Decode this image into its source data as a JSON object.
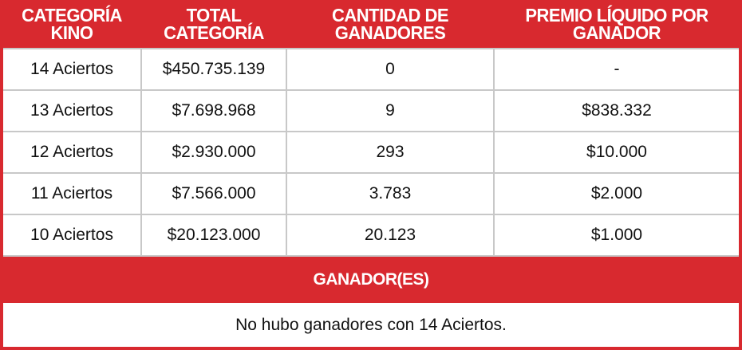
{
  "colors": {
    "accent": "#d8292f",
    "cell_background": "#ffffff",
    "grid_line": "#c8c8c8",
    "text": "#111111",
    "header_text": "#ffffff"
  },
  "table": {
    "headers": [
      {
        "line1": "CATEGORÍA",
        "line2": "KINO"
      },
      {
        "line1": "TOTAL",
        "line2": "CATEGORÍA"
      },
      {
        "line1": "CANTIDAD DE",
        "line2": "GANADORES"
      },
      {
        "line1": "PREMIO LÍQUIDO POR",
        "line2": "GANADOR"
      }
    ],
    "rows": [
      [
        "14 Aciertos",
        "$450.735.139",
        "0",
        "-"
      ],
      [
        "13 Aciertos",
        "$7.698.968",
        "9",
        "$838.332"
      ],
      [
        "12 Aciertos",
        "$2.930.000",
        "293",
        "$10.000"
      ],
      [
        "11 Aciertos",
        "$7.566.000",
        "3.783",
        "$2.000"
      ],
      [
        "10 Aciertos",
        "$20.123.000",
        "20.123",
        "$1.000"
      ]
    ]
  },
  "winners": {
    "title": "GANADOR(ES)",
    "message": "No hubo ganadores con 14 Aciertos."
  }
}
